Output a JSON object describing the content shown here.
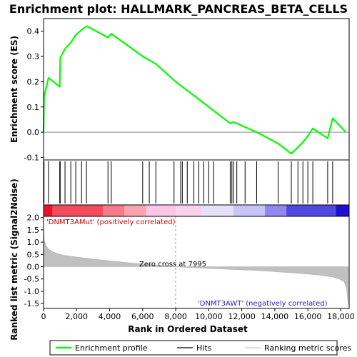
{
  "chart_data": {
    "type": "line",
    "title": "Enrichment plot: HALLMARK_PANCREAS_BETA_CELLS",
    "top_panel": {
      "ylabel": "Enrichment score (ES)",
      "ylim": [
        -0.11,
        0.45
      ],
      "yticks": [
        -0.1,
        0.0,
        0.1,
        0.2,
        0.3,
        0.4
      ],
      "ytick_labels": [
        "-0.1",
        "0.0",
        "0.1",
        "0.2",
        "0.3",
        "0.4"
      ],
      "series": [
        {
          "name": "Enrichment profile",
          "color": "#00ff00",
          "x": [
            0,
            30,
            300,
            980,
            1010,
            1300,
            1650,
            1950,
            2300,
            2600,
            3900,
            4100,
            6000,
            6400,
            6800,
            7900,
            8300,
            8700,
            9100,
            9400,
            9700,
            10000,
            10300,
            11300,
            11500,
            11700,
            12200,
            12900,
            14200,
            15000,
            15400,
            15700,
            16000,
            16300,
            17200,
            17500,
            18300
          ],
          "y": [
            0.0,
            0.14,
            0.215,
            0.18,
            0.295,
            0.33,
            0.355,
            0.385,
            0.405,
            0.42,
            0.375,
            0.39,
            0.3,
            0.285,
            0.27,
            0.205,
            0.185,
            0.165,
            0.145,
            0.13,
            0.115,
            0.1,
            0.085,
            0.035,
            0.04,
            0.035,
            0.02,
            0.0,
            -0.045,
            -0.085,
            -0.06,
            -0.04,
            -0.015,
            0.015,
            -0.025,
            0.055,
            0.0
          ]
        }
      ],
      "hits": [
        30,
        300,
        980,
        1010,
        1300,
        1650,
        1950,
        2300,
        2600,
        3900,
        4100,
        6000,
        6400,
        6800,
        7900,
        8300,
        8400,
        8700,
        9100,
        9400,
        9700,
        10000,
        10300,
        11300,
        11400,
        11500,
        11700,
        12200,
        12900,
        14200,
        15000,
        15400,
        15700,
        16000,
        16300,
        17200,
        17500
      ]
    },
    "bottom_panel": {
      "ylabel": "Ranked list metric (Signal2Noise)",
      "ylim": [
        -1.7,
        2.05
      ],
      "yticks": [
        -1.5,
        -1.0,
        -0.5,
        0.0,
        0.5,
        1.0,
        1.5,
        2.0
      ],
      "ytick_labels": [
        "-1.5",
        "-1.0",
        "-0.5",
        "0.0",
        "0.5",
        "1.0",
        "1.5",
        "2.0"
      ],
      "metric_curve": {
        "x": [
          0,
          50,
          150,
          300,
          500,
          800,
          1200,
          2000,
          3000,
          4000,
          5000,
          6000,
          7000,
          7995,
          9000,
          10000,
          11000,
          12000,
          13000,
          14000,
          15000,
          16000,
          16800,
          17500,
          17900,
          18200,
          18350,
          18450
        ],
        "y": [
          1.5,
          1.05,
          0.85,
          0.72,
          0.62,
          0.54,
          0.47,
          0.39,
          0.31,
          0.24,
          0.17,
          0.11,
          0.05,
          0.0,
          -0.04,
          -0.07,
          -0.1,
          -0.13,
          -0.16,
          -0.2,
          -0.25,
          -0.3,
          -0.35,
          -0.42,
          -0.5,
          -0.62,
          -0.9,
          -1.55
        ]
      },
      "zero_cross_label": "Zero cross at 7995",
      "zero_cross_x": 7995,
      "positive_label": "'DNMT3AMut' (positively correlated)",
      "negative_label": "'DNMT3AWT' (negatively correlated)"
    },
    "xlabel": "Rank in Ordered Dataset",
    "xlim": [
      0,
      18500
    ],
    "xticks": [
      0,
      2000,
      4000,
      6000,
      8000,
      10000,
      12000,
      14000,
      16000,
      18000
    ],
    "xtick_labels": [
      "0",
      "2,000",
      "4,000",
      "6,000",
      "8,000",
      "10,000",
      "12,000",
      "14,000",
      "16,000",
      "18,000"
    ],
    "color_bar": {
      "segments": [
        {
          "x0": 0,
          "x1": 550,
          "color": "#e8102a"
        },
        {
          "x0": 550,
          "x1": 3600,
          "color": "#f44a5e"
        },
        {
          "x0": 3600,
          "x1": 4900,
          "color": "#f77a8a"
        },
        {
          "x0": 4900,
          "x1": 6200,
          "color": "#f9a3b0"
        },
        {
          "x0": 6200,
          "x1": 8000,
          "color": "#fcc6e6"
        },
        {
          "x0": 8000,
          "x1": 9600,
          "color": "#fbd2ee"
        },
        {
          "x0": 9600,
          "x1": 11500,
          "color": "#e6e0fb"
        },
        {
          "x0": 11500,
          "x1": 13400,
          "color": "#c9c4f6"
        },
        {
          "x0": 13400,
          "x1": 14700,
          "color": "#8f88ee"
        },
        {
          "x0": 14700,
          "x1": 17700,
          "color": "#5148e2"
        },
        {
          "x0": 17700,
          "x1": 18500,
          "color": "#1e0fd2"
        }
      ]
    },
    "legend": [
      {
        "label": "Enrichment profile",
        "color": "#00ff00"
      },
      {
        "label": "Hits",
        "color": "#000000"
      },
      {
        "label": "Ranking metric scores",
        "color": "#c8c8c8"
      }
    ],
    "legend_position": "bottom",
    "grid": false
  }
}
